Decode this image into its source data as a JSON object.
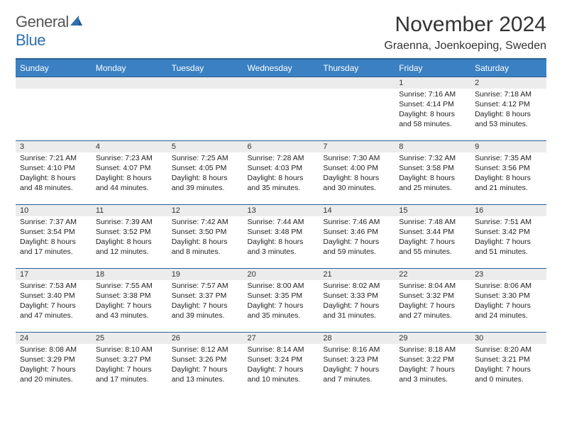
{
  "brand": {
    "part1": "General",
    "part2": "Blue"
  },
  "title": "November 2024",
  "location": "Graenna, Joenkoeping, Sweden",
  "colors": {
    "header_bg": "#3a80c3",
    "header_border": "#2b5f94",
    "daynum_bg": "#ececec",
    "brand_blue": "#2f6faf"
  },
  "weekdays": [
    "Sunday",
    "Monday",
    "Tuesday",
    "Wednesday",
    "Thursday",
    "Friday",
    "Saturday"
  ],
  "weeks": [
    [
      {
        "n": "",
        "sunrise": "",
        "sunset": "",
        "daylight": ""
      },
      {
        "n": "",
        "sunrise": "",
        "sunset": "",
        "daylight": ""
      },
      {
        "n": "",
        "sunrise": "",
        "sunset": "",
        "daylight": ""
      },
      {
        "n": "",
        "sunrise": "",
        "sunset": "",
        "daylight": ""
      },
      {
        "n": "",
        "sunrise": "",
        "sunset": "",
        "daylight": ""
      },
      {
        "n": "1",
        "sunrise": "Sunrise: 7:16 AM",
        "sunset": "Sunset: 4:14 PM",
        "daylight": "Daylight: 8 hours and 58 minutes."
      },
      {
        "n": "2",
        "sunrise": "Sunrise: 7:18 AM",
        "sunset": "Sunset: 4:12 PM",
        "daylight": "Daylight: 8 hours and 53 minutes."
      }
    ],
    [
      {
        "n": "3",
        "sunrise": "Sunrise: 7:21 AM",
        "sunset": "Sunset: 4:10 PM",
        "daylight": "Daylight: 8 hours and 48 minutes."
      },
      {
        "n": "4",
        "sunrise": "Sunrise: 7:23 AM",
        "sunset": "Sunset: 4:07 PM",
        "daylight": "Daylight: 8 hours and 44 minutes."
      },
      {
        "n": "5",
        "sunrise": "Sunrise: 7:25 AM",
        "sunset": "Sunset: 4:05 PM",
        "daylight": "Daylight: 8 hours and 39 minutes."
      },
      {
        "n": "6",
        "sunrise": "Sunrise: 7:28 AM",
        "sunset": "Sunset: 4:03 PM",
        "daylight": "Daylight: 8 hours and 35 minutes."
      },
      {
        "n": "7",
        "sunrise": "Sunrise: 7:30 AM",
        "sunset": "Sunset: 4:00 PM",
        "daylight": "Daylight: 8 hours and 30 minutes."
      },
      {
        "n": "8",
        "sunrise": "Sunrise: 7:32 AM",
        "sunset": "Sunset: 3:58 PM",
        "daylight": "Daylight: 8 hours and 25 minutes."
      },
      {
        "n": "9",
        "sunrise": "Sunrise: 7:35 AM",
        "sunset": "Sunset: 3:56 PM",
        "daylight": "Daylight: 8 hours and 21 minutes."
      }
    ],
    [
      {
        "n": "10",
        "sunrise": "Sunrise: 7:37 AM",
        "sunset": "Sunset: 3:54 PM",
        "daylight": "Daylight: 8 hours and 17 minutes."
      },
      {
        "n": "11",
        "sunrise": "Sunrise: 7:39 AM",
        "sunset": "Sunset: 3:52 PM",
        "daylight": "Daylight: 8 hours and 12 minutes."
      },
      {
        "n": "12",
        "sunrise": "Sunrise: 7:42 AM",
        "sunset": "Sunset: 3:50 PM",
        "daylight": "Daylight: 8 hours and 8 minutes."
      },
      {
        "n": "13",
        "sunrise": "Sunrise: 7:44 AM",
        "sunset": "Sunset: 3:48 PM",
        "daylight": "Daylight: 8 hours and 3 minutes."
      },
      {
        "n": "14",
        "sunrise": "Sunrise: 7:46 AM",
        "sunset": "Sunset: 3:46 PM",
        "daylight": "Daylight: 7 hours and 59 minutes."
      },
      {
        "n": "15",
        "sunrise": "Sunrise: 7:48 AM",
        "sunset": "Sunset: 3:44 PM",
        "daylight": "Daylight: 7 hours and 55 minutes."
      },
      {
        "n": "16",
        "sunrise": "Sunrise: 7:51 AM",
        "sunset": "Sunset: 3:42 PM",
        "daylight": "Daylight: 7 hours and 51 minutes."
      }
    ],
    [
      {
        "n": "17",
        "sunrise": "Sunrise: 7:53 AM",
        "sunset": "Sunset: 3:40 PM",
        "daylight": "Daylight: 7 hours and 47 minutes."
      },
      {
        "n": "18",
        "sunrise": "Sunrise: 7:55 AM",
        "sunset": "Sunset: 3:38 PM",
        "daylight": "Daylight: 7 hours and 43 minutes."
      },
      {
        "n": "19",
        "sunrise": "Sunrise: 7:57 AM",
        "sunset": "Sunset: 3:37 PM",
        "daylight": "Daylight: 7 hours and 39 minutes."
      },
      {
        "n": "20",
        "sunrise": "Sunrise: 8:00 AM",
        "sunset": "Sunset: 3:35 PM",
        "daylight": "Daylight: 7 hours and 35 minutes."
      },
      {
        "n": "21",
        "sunrise": "Sunrise: 8:02 AM",
        "sunset": "Sunset: 3:33 PM",
        "daylight": "Daylight: 7 hours and 31 minutes."
      },
      {
        "n": "22",
        "sunrise": "Sunrise: 8:04 AM",
        "sunset": "Sunset: 3:32 PM",
        "daylight": "Daylight: 7 hours and 27 minutes."
      },
      {
        "n": "23",
        "sunrise": "Sunrise: 8:06 AM",
        "sunset": "Sunset: 3:30 PM",
        "daylight": "Daylight: 7 hours and 24 minutes."
      }
    ],
    [
      {
        "n": "24",
        "sunrise": "Sunrise: 8:08 AM",
        "sunset": "Sunset: 3:29 PM",
        "daylight": "Daylight: 7 hours and 20 minutes."
      },
      {
        "n": "25",
        "sunrise": "Sunrise: 8:10 AM",
        "sunset": "Sunset: 3:27 PM",
        "daylight": "Daylight: 7 hours and 17 minutes."
      },
      {
        "n": "26",
        "sunrise": "Sunrise: 8:12 AM",
        "sunset": "Sunset: 3:26 PM",
        "daylight": "Daylight: 7 hours and 13 minutes."
      },
      {
        "n": "27",
        "sunrise": "Sunrise: 8:14 AM",
        "sunset": "Sunset: 3:24 PM",
        "daylight": "Daylight: 7 hours and 10 minutes."
      },
      {
        "n": "28",
        "sunrise": "Sunrise: 8:16 AM",
        "sunset": "Sunset: 3:23 PM",
        "daylight": "Daylight: 7 hours and 7 minutes."
      },
      {
        "n": "29",
        "sunrise": "Sunrise: 8:18 AM",
        "sunset": "Sunset: 3:22 PM",
        "daylight": "Daylight: 7 hours and 3 minutes."
      },
      {
        "n": "30",
        "sunrise": "Sunrise: 8:20 AM",
        "sunset": "Sunset: 3:21 PM",
        "daylight": "Daylight: 7 hours and 0 minutes."
      }
    ]
  ]
}
